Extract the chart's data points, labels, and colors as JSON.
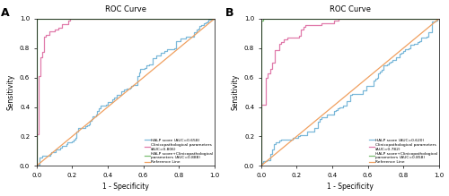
{
  "title": "ROC Curve",
  "xlabel": "1 - Specificity",
  "ylabel": "Sensitivity",
  "panel_A_label": "A",
  "panel_B_label": "B",
  "panel_A": {
    "halp_auc": 0.658,
    "clino_auc": 0.806,
    "combo_auc": 0.888,
    "legend": [
      "HALP score (AUC=0.658)",
      "Clinicopathological parameters\n(AUC=0.806)",
      "HALP score+Clinicopathological\nparameters (AUC=0.888)",
      "Reference Line"
    ]
  },
  "panel_B": {
    "halp_auc": 0.62,
    "clino_auc": 0.782,
    "combo_auc": 0.858,
    "legend": [
      "HALP score (AUC=0.620)",
      "Clinicopathological parameters\n(AUC=0.782)",
      "HALP score+Clinicopathological\nparameters (AUC=0.858)",
      "Reference Line"
    ]
  },
  "colors": {
    "halp": "#7ab8d9",
    "clino": "#e07aaa",
    "combo": "#7bbf72",
    "ref": "#f0a060"
  },
  "tick_labels": [
    "0.0",
    "0.2",
    "0.4",
    "0.6",
    "0.8",
    "1.0"
  ]
}
